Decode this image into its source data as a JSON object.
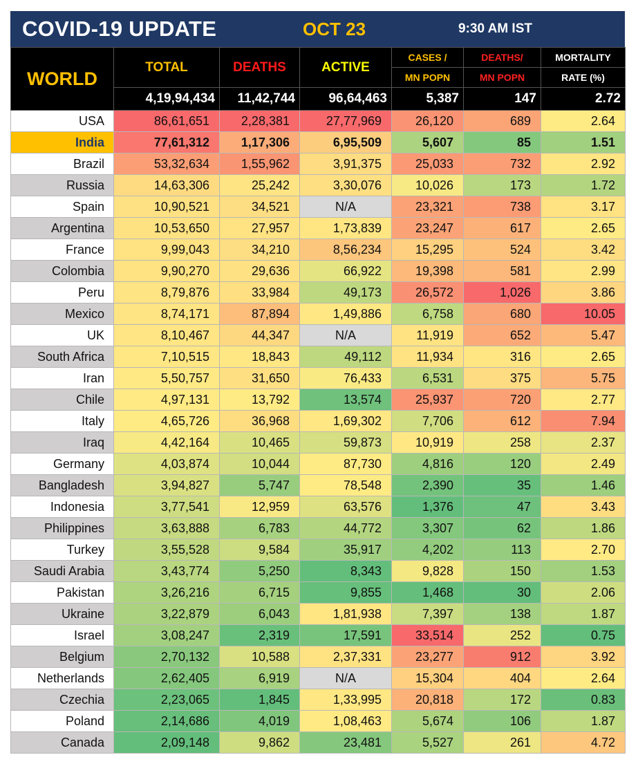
{
  "header": {
    "title": "COVID-19 UPDATE",
    "date": "OCT 23",
    "time": "9:30 AM IST"
  },
  "columns": {
    "region": "WORLD",
    "total": "TOTAL",
    "deaths": "DEATHS",
    "active": "ACTIVE",
    "cases_per_mn_top": "CASES /",
    "cases_per_mn_bottom": "MN POPN",
    "deaths_per_mn_top": "DEATHS/",
    "deaths_per_mn_bottom": "MN POPN",
    "mortality_top": "MORTALITY",
    "mortality_bottom": "RATE (%)"
  },
  "world": {
    "total": "4,19,94,434",
    "deaths": "11,42,744",
    "active": "96,64,463",
    "cases_per_mn": "5,387",
    "deaths_per_mn": "147",
    "mortality": "2.72"
  },
  "colors": {
    "title_bar": "#1f3864",
    "highlight": "#ffc000",
    "heat_green": "#63be7b",
    "heat_yellow": "#ffeb84",
    "heat_red": "#f8696b",
    "na_fill": "#d9d9d9"
  },
  "rows": [
    {
      "country": "USA",
      "total": "86,61,651",
      "deaths": "2,28,381",
      "active": "27,77,969",
      "cases_per_mn": "26,120",
      "deaths_per_mn": "689",
      "mortality": "2.64"
    },
    {
      "country": "India",
      "total": "77,61,312",
      "deaths": "1,17,306",
      "active": "6,95,509",
      "cases_per_mn": "5,607",
      "deaths_per_mn": "85",
      "mortality": "1.51",
      "highlight": true
    },
    {
      "country": "Brazil",
      "total": "53,32,634",
      "deaths": "1,55,962",
      "active": "3,91,375",
      "cases_per_mn": "25,033",
      "deaths_per_mn": "732",
      "mortality": "2.92"
    },
    {
      "country": "Russia",
      "total": "14,63,306",
      "deaths": "25,242",
      "active": "3,30,076",
      "cases_per_mn": "10,026",
      "deaths_per_mn": "173",
      "mortality": "1.72"
    },
    {
      "country": "Spain",
      "total": "10,90,521",
      "deaths": "34,521",
      "active": "N/A",
      "cases_per_mn": "23,321",
      "deaths_per_mn": "738",
      "mortality": "3.17"
    },
    {
      "country": "Argentina",
      "total": "10,53,650",
      "deaths": "27,957",
      "active": "1,73,839",
      "cases_per_mn": "23,247",
      "deaths_per_mn": "617",
      "mortality": "2.65"
    },
    {
      "country": "France",
      "total": "9,99,043",
      "deaths": "34,210",
      "active": "8,56,234",
      "cases_per_mn": "15,295",
      "deaths_per_mn": "524",
      "mortality": "3.42"
    },
    {
      "country": "Colombia",
      "total": "9,90,270",
      "deaths": "29,636",
      "active": "66,922",
      "cases_per_mn": "19,398",
      "deaths_per_mn": "581",
      "mortality": "2.99"
    },
    {
      "country": "Peru",
      "total": "8,79,876",
      "deaths": "33,984",
      "active": "49,173",
      "cases_per_mn": "26,572",
      "deaths_per_mn": "1,026",
      "mortality": "3.86"
    },
    {
      "country": "Mexico",
      "total": "8,74,171",
      "deaths": "87,894",
      "active": "1,49,886",
      "cases_per_mn": "6,758",
      "deaths_per_mn": "680",
      "mortality": "10.05"
    },
    {
      "country": "UK",
      "total": "8,10,467",
      "deaths": "44,347",
      "active": "N/A",
      "cases_per_mn": "11,919",
      "deaths_per_mn": "652",
      "mortality": "5.47"
    },
    {
      "country": "South Africa",
      "total": "7,10,515",
      "deaths": "18,843",
      "active": "49,112",
      "cases_per_mn": "11,934",
      "deaths_per_mn": "316",
      "mortality": "2.65"
    },
    {
      "country": "Iran",
      "total": "5,50,757",
      "deaths": "31,650",
      "active": "76,433",
      "cases_per_mn": "6,531",
      "deaths_per_mn": "375",
      "mortality": "5.75"
    },
    {
      "country": "Chile",
      "total": "4,97,131",
      "deaths": "13,792",
      "active": "13,574",
      "cases_per_mn": "25,937",
      "deaths_per_mn": "720",
      "mortality": "2.77"
    },
    {
      "country": "Italy",
      "total": "4,65,726",
      "deaths": "36,968",
      "active": "1,69,302",
      "cases_per_mn": "7,706",
      "deaths_per_mn": "612",
      "mortality": "7.94"
    },
    {
      "country": "Iraq",
      "total": "4,42,164",
      "deaths": "10,465",
      "active": "59,873",
      "cases_per_mn": "10,919",
      "deaths_per_mn": "258",
      "mortality": "2.37"
    },
    {
      "country": "Germany",
      "total": "4,03,874",
      "deaths": "10,044",
      "active": "87,730",
      "cases_per_mn": "4,816",
      "deaths_per_mn": "120",
      "mortality": "2.49"
    },
    {
      "country": "Bangladesh",
      "total": "3,94,827",
      "deaths": "5,747",
      "active": "78,548",
      "cases_per_mn": "2,390",
      "deaths_per_mn": "35",
      "mortality": "1.46"
    },
    {
      "country": "Indonesia",
      "total": "3,77,541",
      "deaths": "12,959",
      "active": "63,576",
      "cases_per_mn": "1,376",
      "deaths_per_mn": "47",
      "mortality": "3.43"
    },
    {
      "country": "Philippines",
      "total": "3,63,888",
      "deaths": "6,783",
      "active": "44,772",
      "cases_per_mn": "3,307",
      "deaths_per_mn": "62",
      "mortality": "1.86"
    },
    {
      "country": "Turkey",
      "total": "3,55,528",
      "deaths": "9,584",
      "active": "35,917",
      "cases_per_mn": "4,202",
      "deaths_per_mn": "113",
      "mortality": "2.70"
    },
    {
      "country": "Saudi Arabia",
      "total": "3,43,774",
      "deaths": "5,250",
      "active": "8,343",
      "cases_per_mn": "9,828",
      "deaths_per_mn": "150",
      "mortality": "1.53"
    },
    {
      "country": "Pakistan",
      "total": "3,26,216",
      "deaths": "6,715",
      "active": "9,855",
      "cases_per_mn": "1,468",
      "deaths_per_mn": "30",
      "mortality": "2.06"
    },
    {
      "country": "Ukraine",
      "total": "3,22,879",
      "deaths": "6,043",
      "active": "1,81,938",
      "cases_per_mn": "7,397",
      "deaths_per_mn": "138",
      "mortality": "1.87"
    },
    {
      "country": "Israel",
      "total": "3,08,247",
      "deaths": "2,319",
      "active": "17,591",
      "cases_per_mn": "33,514",
      "deaths_per_mn": "252",
      "mortality": "0.75"
    },
    {
      "country": "Belgium",
      "total": "2,70,132",
      "deaths": "10,588",
      "active": "2,37,331",
      "cases_per_mn": "23,277",
      "deaths_per_mn": "912",
      "mortality": "3.92"
    },
    {
      "country": "Netherlands",
      "total": "2,62,405",
      "deaths": "6,919",
      "active": "N/A",
      "cases_per_mn": "15,304",
      "deaths_per_mn": "404",
      "mortality": "2.64"
    },
    {
      "country": "Czechia",
      "total": "2,23,065",
      "deaths": "1,845",
      "active": "1,33,995",
      "cases_per_mn": "20,818",
      "deaths_per_mn": "172",
      "mortality": "0.83"
    },
    {
      "country": "Poland",
      "total": "2,14,686",
      "deaths": "4,019",
      "active": "1,08,463",
      "cases_per_mn": "5,674",
      "deaths_per_mn": "106",
      "mortality": "1.87"
    },
    {
      "country": "Canada",
      "total": "2,09,148",
      "deaths": "9,862",
      "active": "23,481",
      "cases_per_mn": "5,527",
      "deaths_per_mn": "261",
      "mortality": "4.72"
    }
  ]
}
